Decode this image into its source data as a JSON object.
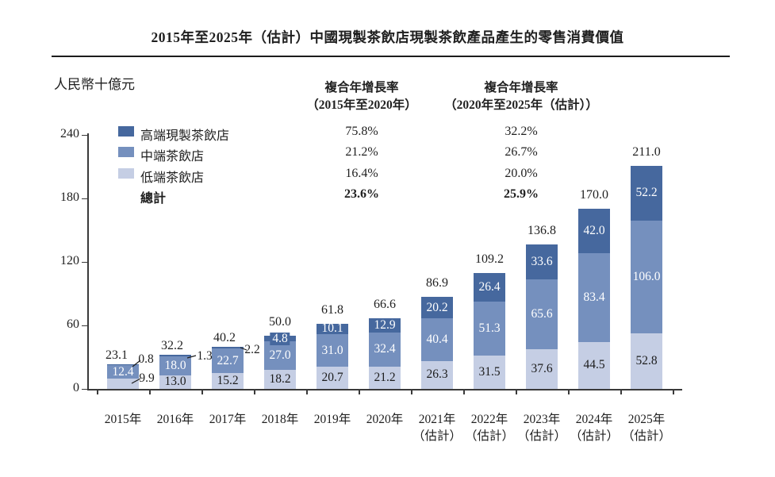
{
  "title": "2015年至2025年（估計）中國現製茶飲店現製茶飲產品產生的零售消費價值",
  "unit_label": "人民幣十億元",
  "cagr": {
    "col1_header": [
      "複合年增長率",
      "（2015年至2020年）"
    ],
    "col2_header": [
      "複合年增長率",
      "（2020年至2025年（估計））"
    ],
    "rows": [
      {
        "label": "高端現製茶飲店",
        "col1": "75.8%",
        "col2": "32.2%",
        "bold": false
      },
      {
        "label": "中端茶飲店",
        "col1": "21.2%",
        "col2": "26.7%",
        "bold": false
      },
      {
        "label": "低端茶飲店",
        "col1": "16.4%",
        "col2": "20.0%",
        "bold": false
      },
      {
        "label": "總計",
        "col1": "23.6%",
        "col2": "25.9%",
        "bold": true
      }
    ]
  },
  "chart_data": {
    "type": "bar",
    "stacked": true,
    "title": "2015年至2025年（估計）中國現製茶飲店現製茶飲產品產生的零售消費價值",
    "ylabel": "人民幣十億元",
    "categories": [
      "2015年",
      "2016年",
      "2017年",
      "2018年",
      "2019年",
      "2020年",
      "2021年",
      "2022年",
      "2023年",
      "2024年",
      "2025年"
    ],
    "estimated_from_index": 6,
    "estimated_label": "（估計）",
    "series": [
      {
        "name": "高端現製茶飲店",
        "color": "#46689e",
        "values": [
          0.8,
          1.3,
          2.2,
          4.8,
          10.1,
          12.9,
          20.2,
          26.4,
          33.6,
          42.0,
          52.2
        ]
      },
      {
        "name": "中端茶飲店",
        "color": "#7590be",
        "values": [
          12.4,
          18.0,
          22.7,
          27.0,
          31.0,
          32.4,
          40.4,
          51.3,
          65.6,
          83.4,
          106.0
        ]
      },
      {
        "name": "低端茶飲店",
        "color": "#c5cee4",
        "values": [
          9.9,
          13.0,
          15.2,
          18.2,
          20.7,
          21.2,
          26.3,
          31.5,
          37.6,
          44.5,
          52.8
        ]
      }
    ],
    "totals": [
      23.1,
      32.2,
      40.2,
      50.0,
      61.8,
      66.6,
      86.9,
      109.2,
      136.8,
      170.0,
      211.0
    ],
    "y_ticks": [
      0,
      60,
      120,
      180,
      240
    ],
    "ylim": [
      0,
      240
    ],
    "grid": false,
    "legend_position": "top-left",
    "text_color": "#1f1f1f",
    "inside_light_label_color": "#1c1c1c",
    "inside_dark_label_color": "#ffffff"
  }
}
